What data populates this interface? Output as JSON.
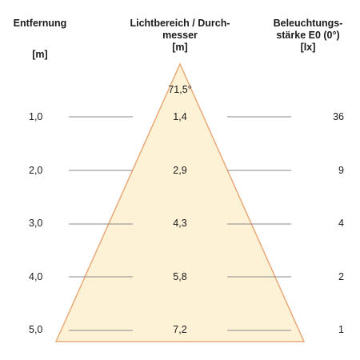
{
  "headers": {
    "distance": {
      "title": "Entfernung",
      "unit": "[m]"
    },
    "diameter": {
      "title_line1": "Lichtbereich / Durch-",
      "title_line2": "messer",
      "unit": "[m]"
    },
    "illuminance": {
      "title_line1": "Beleuchtungs-",
      "title_line2": "stärke E0 (0°)",
      "unit": "[lx]"
    }
  },
  "beam_angle": "71,5°",
  "rows": [
    {
      "distance": "1,0",
      "diameter": "1,4",
      "lux": "36"
    },
    {
      "distance": "2,0",
      "diameter": "2,9",
      "lux": "9"
    },
    {
      "distance": "3,0",
      "diameter": "4,3",
      "lux": "4"
    },
    {
      "distance": "4,0",
      "diameter": "5,8",
      "lux": "2"
    },
    {
      "distance": "5,0",
      "diameter": "7,2",
      "lux": "1"
    }
  ],
  "colors": {
    "cone_fill": "#fdf1d6",
    "cone_stroke": "#e8a978",
    "rule_line": "#8a8a8a"
  }
}
